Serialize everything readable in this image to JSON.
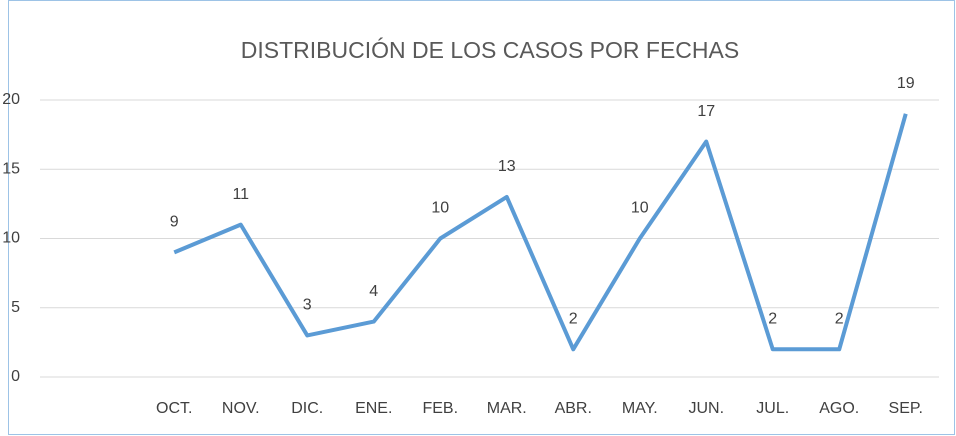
{
  "chart_data": {
    "type": "line",
    "title": "DISTRIBUCIÓN DE LOS CASOS POR FECHAS",
    "categories": [
      "OCT.",
      "NOV.",
      "DIC.",
      "ENE.",
      "FEB.",
      "MAR.",
      "ABR.",
      "MAY.",
      "JUN.",
      "JUL.",
      "AGO.",
      "SEP."
    ],
    "values": [
      9,
      11,
      3,
      4,
      10,
      13,
      2,
      10,
      17,
      2,
      2,
      19
    ],
    "color": "#5b9bd5",
    "ylim": [
      0,
      20
    ],
    "yticks": [
      0,
      5,
      10,
      15,
      20
    ],
    "grid": true
  }
}
